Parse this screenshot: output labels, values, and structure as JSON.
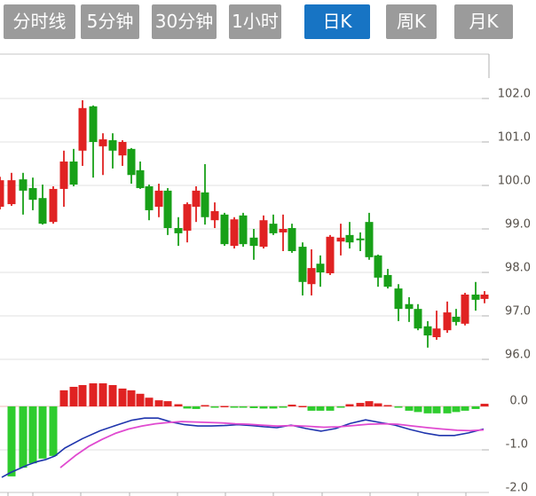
{
  "tabs": {
    "items": [
      {
        "label": "分时线",
        "active": false
      },
      {
        "label": "5分钟",
        "active": false
      },
      {
        "label": "30分钟",
        "active": false
      },
      {
        "label": "1小时",
        "active": false
      },
      {
        "label": "日K",
        "active": true
      },
      {
        "label": "周K",
        "active": false
      },
      {
        "label": "月K",
        "active": false
      }
    ]
  },
  "colors": {
    "up": "#e02222",
    "down": "#18a018",
    "macd_up": "#e02222",
    "macd_down": "#2ecc2e",
    "dif_line": "#1f35ad",
    "dea_line": "#e04ad0",
    "tab_bg": "#9b9b9b",
    "tab_active_bg": "#1774c4",
    "tab_text": "#ffffff",
    "grid": "#e2e2e2",
    "tick": "#b0b0b0",
    "frame": "#c4c4c4",
    "zero_line": "#f2b8b8",
    "axis_text": "#55504a"
  },
  "chart_data": {
    "type": "candlestick",
    "title": "",
    "legend_position": "none",
    "grid": true,
    "price_panel": {
      "y_ticks": [
        102,
        101,
        100,
        99,
        98,
        97,
        96
      ],
      "y_range": [
        95.4,
        103.0
      ],
      "candles": [
        [
          0,
          99.51,
          100.2,
          99.45,
          100.12
        ],
        [
          13,
          99.57,
          100.29,
          99.53,
          100.12
        ],
        [
          26,
          100.14,
          100.29,
          99.33,
          99.88
        ],
        [
          37,
          99.94,
          100.18,
          99.43,
          99.67
        ],
        [
          48,
          99.71,
          100.02,
          99.1,
          99.12
        ],
        [
          60,
          99.16,
          99.98,
          99.12,
          99.92
        ],
        [
          72,
          99.92,
          100.8,
          99.51,
          100.55
        ],
        [
          83,
          100.55,
          100.84,
          99.98,
          100.02
        ],
        [
          93,
          100.8,
          101.96,
          100.45,
          101.78
        ],
        [
          105,
          101.82,
          101.84,
          100.18,
          101.0
        ],
        [
          116,
          100.9,
          101.2,
          100.24,
          101.06
        ],
        [
          127,
          101.04,
          101.2,
          100.39,
          100.8
        ],
        [
          138,
          100.69,
          101.04,
          100.45,
          101.0
        ],
        [
          148,
          100.84,
          100.86,
          100.04,
          100.24
        ],
        [
          158,
          100.35,
          100.55,
          99.92,
          99.94
        ],
        [
          168,
          99.98,
          100.02,
          99.2,
          99.43
        ],
        [
          179,
          99.51,
          100.04,
          99.27,
          99.88
        ],
        [
          189,
          99.88,
          99.94,
          98.86,
          99.02
        ],
        [
          201,
          99.02,
          99.27,
          98.61,
          98.9
        ],
        [
          211,
          98.96,
          99.61,
          98.69,
          99.57
        ],
        [
          221,
          99.51,
          99.98,
          99.16,
          99.88
        ],
        [
          231,
          99.84,
          100.49,
          99.1,
          99.27
        ],
        [
          242,
          99.2,
          99.61,
          99.02,
          99.41
        ],
        [
          253,
          99.33,
          99.37,
          98.61,
          98.65
        ],
        [
          264,
          98.61,
          99.27,
          98.55,
          99.22
        ],
        [
          274,
          99.31,
          99.37,
          98.59,
          98.65
        ],
        [
          286,
          98.8,
          99.0,
          98.29,
          98.61
        ],
        [
          297,
          98.59,
          99.31,
          98.55,
          99.2
        ],
        [
          308,
          99.12,
          99.33,
          98.86,
          98.9
        ],
        [
          319,
          98.92,
          99.33,
          98.49,
          99.0
        ],
        [
          329,
          99.02,
          99.12,
          98.45,
          98.49
        ],
        [
          341,
          98.59,
          98.69,
          97.47,
          97.78
        ],
        [
          351,
          97.73,
          98.53,
          97.47,
          98.1
        ],
        [
          361,
          98.2,
          98.39,
          97.67,
          98.0
        ],
        [
          372,
          97.98,
          98.86,
          97.94,
          98.82
        ],
        [
          384,
          98.71,
          99.12,
          98.39,
          98.8
        ],
        [
          394,
          98.86,
          99.16,
          98.55,
          98.69
        ],
        [
          406,
          98.78,
          98.92,
          98.49,
          98.74
        ],
        [
          416,
          99.16,
          99.37,
          98.29,
          98.35
        ],
        [
          426,
          98.39,
          98.41,
          97.67,
          97.88
        ],
        [
          437,
          97.94,
          98.08,
          97.63,
          97.67
        ],
        [
          449,
          97.63,
          97.73,
          96.88,
          97.16
        ],
        [
          461,
          97.27,
          97.43,
          96.86,
          97.16
        ],
        [
          471,
          97.16,
          97.27,
          96.67,
          96.71
        ],
        [
          482,
          96.76,
          96.88,
          96.27,
          96.55
        ],
        [
          492,
          96.51,
          97.12,
          96.45,
          96.71
        ],
        [
          504,
          96.67,
          97.33,
          96.61,
          97.08
        ],
        [
          514,
          96.98,
          97.16,
          96.78,
          96.86
        ],
        [
          524,
          96.82,
          97.53,
          96.78,
          97.49
        ],
        [
          536,
          97.49,
          97.78,
          97.12,
          97.37
        ],
        [
          546,
          97.39,
          97.57,
          97.29,
          97.49
        ]
      ]
    },
    "macd_panel": {
      "y_ticks": [
        0,
        -1,
        -2
      ],
      "y_range": [
        -2.1,
        0.6
      ],
      "x_ticks": [
        9,
        37,
        91,
        146,
        200,
        254,
        308,
        363,
        417,
        471,
        525
      ],
      "histogram": [
        [
          13,
          -1.61
        ],
        [
          26,
          -1.41
        ],
        [
          37,
          -1.31
        ],
        [
          48,
          -1.2
        ],
        [
          60,
          -1.14
        ],
        [
          72,
          0.37
        ],
        [
          83,
          0.45
        ],
        [
          93,
          0.49
        ],
        [
          105,
          0.53
        ],
        [
          116,
          0.53
        ],
        [
          127,
          0.49
        ],
        [
          138,
          0.41
        ],
        [
          148,
          0.37
        ],
        [
          158,
          0.29
        ],
        [
          168,
          0.2
        ],
        [
          179,
          0.14
        ],
        [
          189,
          0.12
        ],
        [
          201,
          0.05
        ],
        [
          211,
          -0.05
        ],
        [
          221,
          -0.06
        ],
        [
          231,
          0.03
        ],
        [
          242,
          -0.01
        ],
        [
          253,
          0.01
        ],
        [
          264,
          -0.02
        ],
        [
          274,
          -0.01
        ],
        [
          286,
          -0.04
        ],
        [
          297,
          -0.05
        ],
        [
          308,
          -0.05
        ],
        [
          319,
          -0.02
        ],
        [
          329,
          0.04
        ],
        [
          341,
          0.01
        ],
        [
          351,
          -0.1
        ],
        [
          361,
          -0.1
        ],
        [
          372,
          -0.1
        ],
        [
          384,
          -0.02
        ],
        [
          394,
          0.05
        ],
        [
          406,
          0.08
        ],
        [
          416,
          0.12
        ],
        [
          426,
          0.07
        ],
        [
          437,
          0.03
        ],
        [
          449,
          -0.03
        ],
        [
          461,
          -0.1
        ],
        [
          471,
          -0.13
        ],
        [
          482,
          -0.16
        ],
        [
          492,
          -0.16
        ],
        [
          504,
          -0.16
        ],
        [
          514,
          -0.13
        ],
        [
          524,
          -0.1
        ],
        [
          536,
          -0.06
        ],
        [
          546,
          0.06
        ]
      ],
      "dif": [
        [
          2,
          -1.63
        ],
        [
          12,
          -1.52
        ],
        [
          22,
          -1.43
        ],
        [
          32,
          -1.34
        ],
        [
          42,
          -1.27
        ],
        [
          52,
          -1.22
        ],
        [
          62,
          -1.14
        ],
        [
          73,
          -0.96
        ],
        [
          93,
          -0.74
        ],
        [
          113,
          -0.56
        ],
        [
          133,
          -0.42
        ],
        [
          148,
          -0.32
        ],
        [
          163,
          -0.27
        ],
        [
          178,
          -0.27
        ],
        [
          193,
          -0.36
        ],
        [
          208,
          -0.42
        ],
        [
          223,
          -0.45
        ],
        [
          238,
          -0.45
        ],
        [
          253,
          -0.44
        ],
        [
          268,
          -0.42
        ],
        [
          283,
          -0.44
        ],
        [
          298,
          -0.47
        ],
        [
          312,
          -0.49
        ],
        [
          328,
          -0.43
        ],
        [
          345,
          -0.51
        ],
        [
          362,
          -0.57
        ],
        [
          378,
          -0.51
        ],
        [
          395,
          -0.39
        ],
        [
          412,
          -0.31
        ],
        [
          428,
          -0.37
        ],
        [
          445,
          -0.43
        ],
        [
          462,
          -0.53
        ],
        [
          478,
          -0.61
        ],
        [
          495,
          -0.67
        ],
        [
          512,
          -0.67
        ],
        [
          528,
          -0.61
        ],
        [
          545,
          -0.52
        ]
      ],
      "dea": [
        [
          68,
          -1.41
        ],
        [
          85,
          -1.13
        ],
        [
          100,
          -0.92
        ],
        [
          115,
          -0.76
        ],
        [
          130,
          -0.62
        ],
        [
          145,
          -0.52
        ],
        [
          160,
          -0.45
        ],
        [
          175,
          -0.4
        ],
        [
          190,
          -0.37
        ],
        [
          205,
          -0.35
        ],
        [
          220,
          -0.36
        ],
        [
          235,
          -0.37
        ],
        [
          250,
          -0.38
        ],
        [
          265,
          -0.4
        ],
        [
          280,
          -0.41
        ],
        [
          295,
          -0.43
        ],
        [
          312,
          -0.45
        ],
        [
          330,
          -0.44
        ],
        [
          348,
          -0.46
        ],
        [
          365,
          -0.48
        ],
        [
          382,
          -0.47
        ],
        [
          398,
          -0.44
        ],
        [
          415,
          -0.41
        ],
        [
          432,
          -0.4
        ],
        [
          448,
          -0.41
        ],
        [
          465,
          -0.45
        ],
        [
          482,
          -0.49
        ],
        [
          498,
          -0.52
        ],
        [
          515,
          -0.55
        ],
        [
          530,
          -0.56
        ],
        [
          545,
          -0.54
        ]
      ]
    }
  }
}
